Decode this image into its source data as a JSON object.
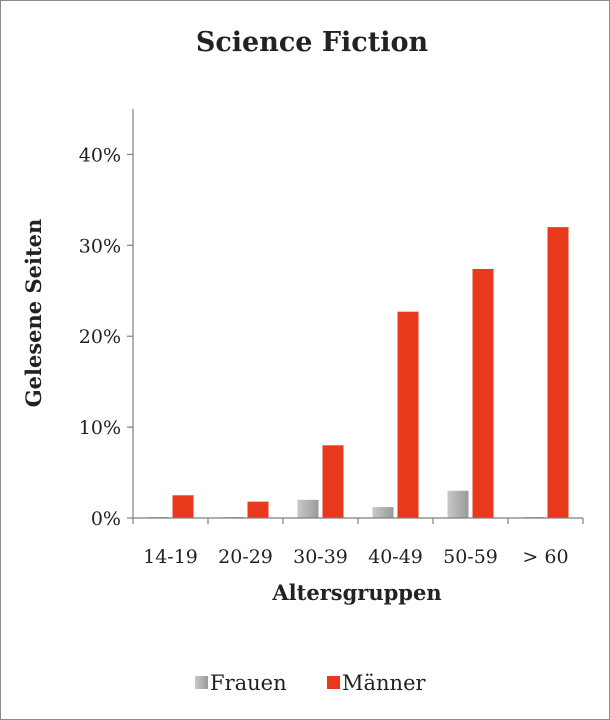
{
  "chart_data": {
    "type": "bar",
    "title": "Science Fiction",
    "xlabel": "Altersgruppen",
    "ylabel": "Gelesene Seiten",
    "categories": [
      "14-19",
      "20-29",
      "30-39",
      "40-49",
      "50-59",
      "> 60"
    ],
    "series": [
      {
        "name": "Frauen",
        "values": [
          0.0,
          0.0,
          2.0,
          1.2,
          3.0,
          0.0
        ],
        "color": "#aeaeae"
      },
      {
        "name": "Männer",
        "values": [
          2.5,
          1.8,
          8.0,
          22.7,
          27.4,
          32.0
        ],
        "color": "#e8391c"
      }
    ],
    "ylim": [
      0,
      45
    ],
    "yticks": [
      0,
      10,
      20,
      30,
      40
    ],
    "ytick_labels": [
      "0%",
      "10%",
      "20%",
      "30%",
      "40%"
    ],
    "grid": false,
    "legend_position": "bottom"
  }
}
